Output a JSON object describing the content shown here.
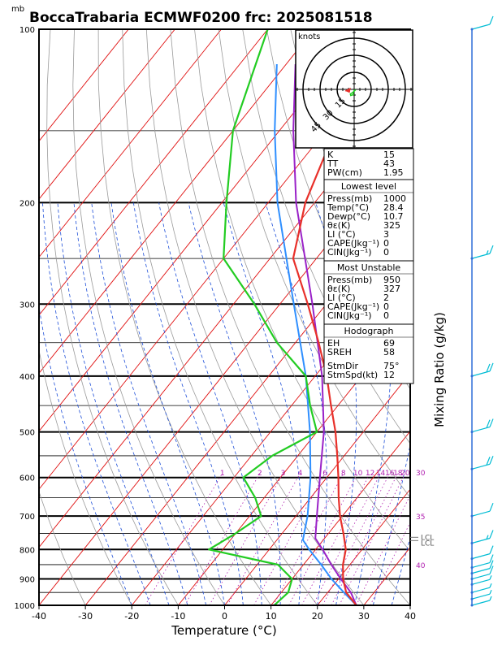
{
  "chart_data": {
    "type": "skew-t",
    "title": "BoccaTrabaria ECMWF0200 frc: 2025081518",
    "pressure_unit": "mb",
    "xlabel": "Temperature (°C)",
    "right_label": "Mixing Ratio (g/kg)",
    "xlim": [
      -40,
      40
    ],
    "ylim": [
      1000,
      100
    ],
    "x_ticks": [
      -40,
      -30,
      -20,
      -10,
      0,
      10,
      20,
      30,
      40
    ],
    "pressure_levels": [
      100,
      200,
      300,
      400,
      500,
      600,
      700,
      800,
      900,
      1000
    ],
    "mixing_ratio_labels": [
      "1",
      "2",
      "3",
      "4",
      "6",
      "8",
      "10",
      "12",
      "14",
      "16",
      "18",
      "20",
      "25",
      "30"
    ],
    "right_side_numbers": [
      "35",
      "40"
    ],
    "lcl_labels": [
      "LCL",
      "LCL"
    ],
    "temperature_profile": [
      {
        "p": 1000,
        "t": 28.4
      },
      {
        "p": 950,
        "t": 24.0
      },
      {
        "p": 900,
        "t": 21.0
      },
      {
        "p": 850,
        "t": 18.5
      },
      {
        "p": 800,
        "t": 16.5
      },
      {
        "p": 750,
        "t": 13.2
      },
      {
        "p": 700,
        "t": 9.5
      },
      {
        "p": 650,
        "t": 6.0
      },
      {
        "p": 600,
        "t": 2.5
      },
      {
        "p": 550,
        "t": -1.5
      },
      {
        "p": 500,
        "t": -6.0
      },
      {
        "p": 450,
        "t": -11.5
      },
      {
        "p": 400,
        "t": -17.5
      },
      {
        "p": 350,
        "t": -25.0
      },
      {
        "p": 300,
        "t": -34.0
      },
      {
        "p": 250,
        "t": -45.0
      },
      {
        "p": 200,
        "t": -52.0
      },
      {
        "p": 150,
        "t": -58.0
      },
      {
        "p": 100,
        "t": -64.0
      }
    ],
    "dewpoint_profile": [
      {
        "p": 1000,
        "t": 10.7
      },
      {
        "p": 950,
        "t": 11.5
      },
      {
        "p": 900,
        "t": 10.0
      },
      {
        "p": 850,
        "t": 4.5
      },
      {
        "p": 800,
        "t": -13.0
      },
      {
        "p": 750,
        "t": -10.0
      },
      {
        "p": 700,
        "t": -7.5
      },
      {
        "p": 650,
        "t": -12.0
      },
      {
        "p": 600,
        "t": -18.0
      },
      {
        "p": 550,
        "t": -15.5
      },
      {
        "p": 500,
        "t": -10.0
      },
      {
        "p": 450,
        "t": -16.0
      },
      {
        "p": 400,
        "t": -22.0
      },
      {
        "p": 350,
        "t": -34.0
      },
      {
        "p": 300,
        "t": -45.5
      },
      {
        "p": 250,
        "t": -60.0
      },
      {
        "p": 200,
        "t": -69.0
      },
      {
        "p": 150,
        "t": -80.0
      },
      {
        "p": 100,
        "t": -90.0
      }
    ],
    "parcel_surface": [
      {
        "p": 1000,
        "t": 28.4
      },
      {
        "p": 950,
        "t": 23.5
      },
      {
        "p": 900,
        "t": 18.5
      },
      {
        "p": 850,
        "t": 13.8
      },
      {
        "p": 800,
        "t": 8.6
      },
      {
        "p": 770,
        "t": 5.6
      },
      {
        "p": 700,
        "t": 2.5
      },
      {
        "p": 600,
        "t": -3.5
      },
      {
        "p": 500,
        "t": -11.5
      },
      {
        "p": 400,
        "t": -22.0
      },
      {
        "p": 300,
        "t": -37.0
      },
      {
        "p": 200,
        "t": -58.0
      },
      {
        "p": 150,
        "t": -71.0
      },
      {
        "p": 115,
        "t": -82.0
      }
    ],
    "parcel_mu": [
      {
        "p": 1000,
        "t": 28.4
      },
      {
        "p": 950,
        "t": 25.0
      },
      {
        "p": 900,
        "t": 20.5
      },
      {
        "p": 850,
        "t": 16.0
      },
      {
        "p": 800,
        "t": 11.5
      },
      {
        "p": 765,
        "t": 8.0
      },
      {
        "p": 700,
        "t": 4.5
      },
      {
        "p": 600,
        "t": -1.5
      },
      {
        "p": 500,
        "t": -8.5
      },
      {
        "p": 400,
        "t": -18.5
      },
      {
        "p": 300,
        "t": -33.0
      },
      {
        "p": 200,
        "t": -54.0
      },
      {
        "p": 150,
        "t": -67.0
      },
      {
        "p": 115,
        "t": -78.0
      }
    ],
    "hodograph": {
      "unit": "knots",
      "ring_labels": [
        "15",
        "30",
        "45"
      ],
      "trace": [
        [
          2,
          -1
        ],
        [
          -3,
          -8
        ],
        [
          -10,
          -12
        ],
        [
          -9,
          -16
        ],
        [
          -2,
          -14
        ],
        [
          -3,
          -8
        ],
        [
          4,
          -1
        ]
      ]
    },
    "wind_barbs": [
      {
        "p": 100,
        "speed": 10
      },
      {
        "p": 250,
        "speed": 15
      },
      {
        "p": 400,
        "speed": 20
      },
      {
        "p": 500,
        "speed": 20
      },
      {
        "p": 580,
        "speed": 20
      },
      {
        "p": 700,
        "speed": 10
      },
      {
        "p": 780,
        "speed": 15
      },
      {
        "p": 830,
        "speed": 10
      },
      {
        "p": 860,
        "speed": 10
      },
      {
        "p": 880,
        "speed": 10
      },
      {
        "p": 900,
        "speed": 10
      },
      {
        "p": 920,
        "speed": 5
      },
      {
        "p": 950,
        "speed": 5
      },
      {
        "p": 975,
        "speed": 5
      },
      {
        "p": 1000,
        "speed": 5
      }
    ]
  },
  "tables": {
    "indices": [
      {
        "label": "K",
        "value": "15"
      },
      {
        "label": "TT",
        "value": "43"
      },
      {
        "label": "PW(cm)",
        "value": "1.95"
      }
    ],
    "lowest": {
      "title": "Lowest level",
      "rows": [
        {
          "label": "Press(mb)",
          "value": "1000"
        },
        {
          "label": "Temp(°C)",
          "value": "28.4"
        },
        {
          "label": "Dewp(°C)",
          "value": "10.7"
        },
        {
          "label": "θε(K)",
          "value": "325"
        },
        {
          "label": "LI (°C)",
          "value": "3"
        },
        {
          "label": "CAPE(Jkg⁻¹)",
          "value": "0"
        },
        {
          "label": "CIN(Jkg⁻¹)",
          "value": "0"
        }
      ]
    },
    "unstable": {
      "title": "Most Unstable",
      "rows": [
        {
          "label": "Press(mb)",
          "value": "950"
        },
        {
          "label": "θε(K)",
          "value": "327"
        },
        {
          "label": "LI (°C)",
          "value": "2"
        },
        {
          "label": "CAPE(Jkg⁻¹)",
          "value": "0"
        },
        {
          "label": "CIN(Jkg⁻¹)",
          "value": "0"
        }
      ]
    },
    "hodo": {
      "title": "Hodograph",
      "rows": [
        {
          "label": "EH",
          "value": "69"
        },
        {
          "label": "SREH",
          "value": "58"
        },
        {
          "label": "StmDir",
          "value": "75°"
        },
        {
          "label": "StmSpd(kt)",
          "value": "12"
        }
      ]
    }
  },
  "colors": {
    "temperature": "#e8302a",
    "dewpoint": "#22cc22",
    "parcel_surface": "#2f8fff",
    "parcel_mu": "#9a22c8",
    "isotherm": "#e01010",
    "dry_adiabat": "#9a9a9a",
    "moist_adiabat": "#1d4ed8",
    "mixing_ratio": "#b020b0",
    "barb": "#00bcd4"
  }
}
